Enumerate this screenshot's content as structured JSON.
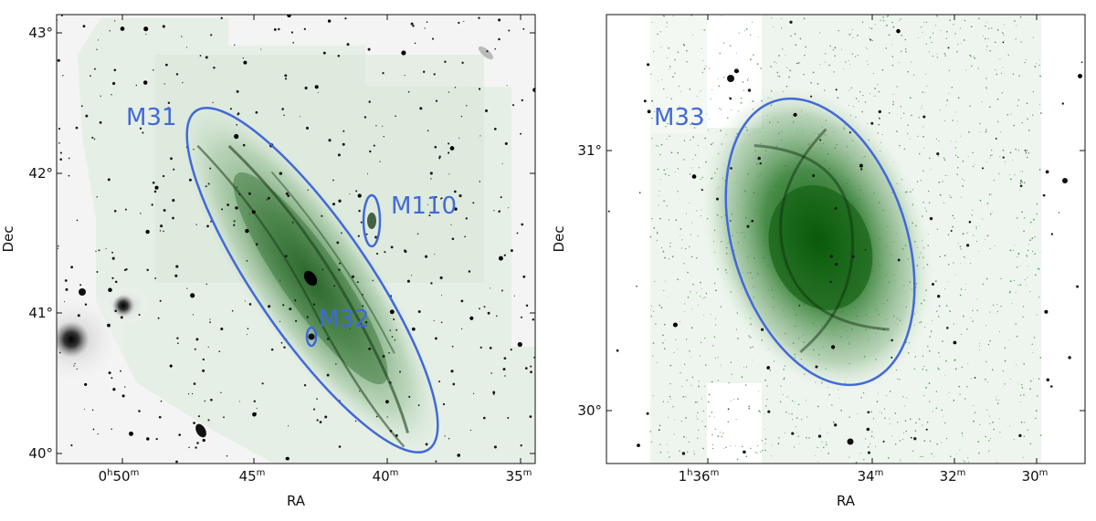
{
  "accent_color": "#4169d8",
  "panels": [
    {
      "x_label": "RA",
      "y_label": "Dec",
      "x_ticks": [
        {
          "main": "0",
          "unit": "h",
          "min": "50",
          "sup": "m"
        },
        {
          "main": "45",
          "sup": "m"
        },
        {
          "main": "40",
          "sup": "m"
        },
        {
          "main": "35",
          "sup": "m"
        }
      ],
      "y_ticks": [
        "43°",
        "42°",
        "41°",
        "40°"
      ],
      "galaxies": [
        {
          "label": "M31"
        },
        {
          "label": "M110"
        },
        {
          "label": "M32"
        }
      ]
    },
    {
      "x_label": "RA",
      "y_label": "Dec",
      "x_ticks": [
        {
          "main": "1",
          "unit": "h",
          "min": "36",
          "sup": "m"
        },
        {
          "main": "34",
          "sup": "m"
        },
        {
          "main": "32",
          "sup": "m"
        },
        {
          "main": "30",
          "sup": "m"
        }
      ],
      "y_ticks": [
        "31°",
        "30°"
      ],
      "galaxies": [
        {
          "label": "M33"
        }
      ]
    }
  ]
}
